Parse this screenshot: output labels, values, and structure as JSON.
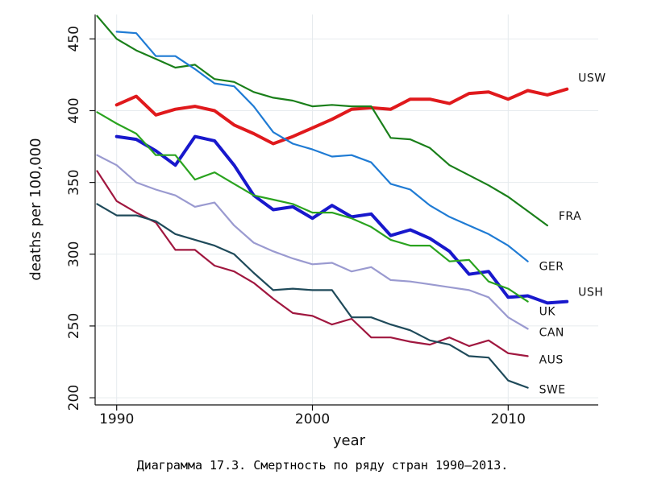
{
  "caption": "Диаграмма 17.3. Смертность по ряду стран 1990–2013.",
  "chart_data": {
    "type": "line",
    "xlabel": "year",
    "ylabel": "deaths per 100,000",
    "xlim": [
      1988.9,
      2014.6
    ],
    "ylim": [
      195,
      467
    ],
    "xticks": [
      1990,
      2000,
      2010
    ],
    "yticks": [
      200,
      250,
      300,
      350,
      400,
      450
    ],
    "grid": true,
    "legend": "direct labels at line ends",
    "series": [
      {
        "name": "USW",
        "color": "#e0191c",
        "width": 4,
        "x": [
          1990,
          1991,
          1992,
          1993,
          1994,
          1995,
          1996,
          1997,
          1998,
          1999,
          2000,
          2001,
          2002,
          2003,
          2004,
          2005,
          2006,
          2007,
          2008,
          2009,
          2010,
          2011,
          2012,
          2013
        ],
        "y": [
          404,
          410,
          397,
          401,
          403,
          400,
          390,
          384,
          377,
          382,
          388,
          394,
          401,
          402,
          401,
          408,
          408,
          405,
          412,
          413,
          408,
          414,
          411,
          415
        ]
      },
      {
        "name": "FRA",
        "color": "#1a7f1a",
        "width": 2.2,
        "x": [
          1989,
          1990,
          1991,
          1992,
          1993,
          1994,
          1995,
          1996,
          1997,
          1998,
          1999,
          2000,
          2001,
          2002,
          2003,
          2004,
          2005,
          2006,
          2007,
          2008,
          2009,
          2010,
          2011,
          2012
        ],
        "y": [
          466,
          450,
          442,
          436,
          430,
          432,
          422,
          420,
          413,
          409,
          407,
          403,
          404,
          403,
          403,
          381,
          380,
          374,
          362,
          355,
          348,
          340,
          330,
          320
        ]
      },
      {
        "name": "GER",
        "color": "#1f7bd4",
        "width": 2.2,
        "x": [
          1990,
          1991,
          1992,
          1993,
          1994,
          1995,
          1996,
          1997,
          1998,
          1999,
          2000,
          2001,
          2002,
          2003,
          2004,
          2005,
          2006,
          2007,
          2008,
          2009,
          2010,
          2011
        ],
        "y": [
          455,
          454,
          438,
          438,
          429,
          419,
          417,
          403,
          385,
          377,
          373,
          368,
          369,
          364,
          349,
          345,
          334,
          326,
          320,
          314,
          306,
          295
        ]
      },
      {
        "name": "USH",
        "color": "#1818cc",
        "width": 4,
        "x": [
          1990,
          1991,
          1992,
          1993,
          1994,
          1995,
          1996,
          1997,
          1998,
          1999,
          2000,
          2001,
          2002,
          2003,
          2004,
          2005,
          2006,
          2007,
          2008,
          2009,
          2010,
          2011,
          2012,
          2013
        ],
        "y": [
          382,
          380,
          372,
          362,
          382,
          379,
          362,
          341,
          331,
          333,
          325,
          334,
          326,
          328,
          313,
          317,
          311,
          302,
          286,
          288,
          270,
          271,
          266,
          267
        ]
      },
      {
        "name": "UK",
        "color": "#2aa31f",
        "width": 2.2,
        "x": [
          1989,
          1990,
          1991,
          1992,
          1993,
          1994,
          1995,
          1996,
          1997,
          1998,
          1999,
          2000,
          2001,
          2002,
          2003,
          2004,
          2005,
          2006,
          2007,
          2008,
          2009,
          2010,
          2011
        ],
        "y": [
          399,
          391,
          384,
          369,
          369,
          352,
          357,
          349,
          341,
          338,
          335,
          329,
          329,
          325,
          319,
          310,
          306,
          306,
          295,
          296,
          281,
          276,
          267
        ]
      },
      {
        "name": "CAN",
        "color": "#9a9ad0",
        "width": 2.2,
        "x": [
          1989,
          1990,
          1991,
          1992,
          1993,
          1994,
          1995,
          1996,
          1997,
          1998,
          1999,
          2000,
          2001,
          2002,
          2003,
          2004,
          2005,
          2006,
          2007,
          2008,
          2009,
          2010,
          2011
        ],
        "y": [
          369,
          362,
          350,
          345,
          341,
          333,
          336,
          320,
          308,
          302,
          297,
          293,
          294,
          288,
          291,
          282,
          281,
          279,
          277,
          275,
          270,
          256,
          248
        ]
      },
      {
        "name": "AUS",
        "color": "#a0173f",
        "width": 2.2,
        "x": [
          1989,
          1990,
          1991,
          1992,
          1993,
          1994,
          1995,
          1996,
          1997,
          1998,
          1999,
          2000,
          2001,
          2002,
          2003,
          2004,
          2005,
          2006,
          2007,
          2008,
          2009,
          2010,
          2011
        ],
        "y": [
          358,
          337,
          329,
          322,
          303,
          303,
          292,
          288,
          280,
          269,
          259,
          257,
          251,
          255,
          242,
          242,
          239,
          237,
          242,
          236,
          240,
          231,
          229
        ]
      },
      {
        "name": "SWE",
        "color": "#1f4a5a",
        "width": 2.2,
        "x": [
          1989,
          1990,
          1991,
          1992,
          1993,
          1994,
          1995,
          1996,
          1997,
          1998,
          1999,
          2000,
          2001,
          2002,
          2003,
          2004,
          2005,
          2006,
          2007,
          2008,
          2009,
          2010,
          2011
        ],
        "y": [
          335,
          327,
          327,
          323,
          314,
          310,
          306,
          300,
          287,
          275,
          276,
          275,
          275,
          256,
          256,
          251,
          247,
          240,
          237,
          229,
          228,
          212,
          207
        ]
      }
    ]
  }
}
